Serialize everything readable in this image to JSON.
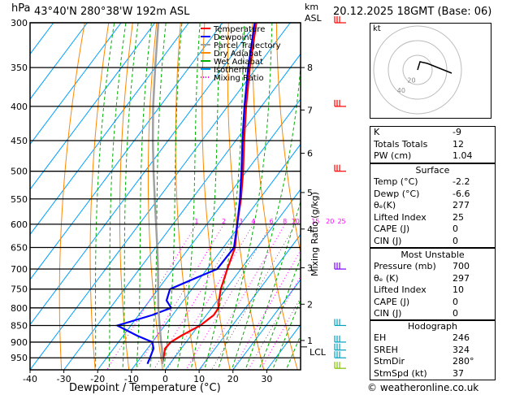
{
  "header": {
    "hpa_unit": "hPa",
    "location": "43°40'N  280°38'W  192m  ASL",
    "km_unit": "km",
    "asl_unit": "ASL",
    "datetime": "20.12.2025  18GMT  (Base: 06)",
    "xlabel": "Dewpoint / Temperature (°C)",
    "mixing_ratio_label": "Mixing Ratio (g/kg)",
    "lcl_label": "LCL",
    "hodo_unit": "kt"
  },
  "legend": [
    {
      "label": "Temperature",
      "color": "#ff0000"
    },
    {
      "label": "Dewpoint",
      "color": "#0000ff"
    },
    {
      "label": "Parcel Trajectory",
      "color": "#a0a0a0"
    },
    {
      "label": "Dry Adiabat",
      "color": "#ff8800"
    },
    {
      "label": "Wet Adiabat",
      "color": "#00b000"
    },
    {
      "label": "Isotherm",
      "color": "#00a0ff"
    },
    {
      "label": "Mixing Ratio",
      "color": "#ff00ff"
    }
  ],
  "chart_data": {
    "type": "line",
    "title": "43°40'N  280°38'W  192m  ASL",
    "xlabel": "Dewpoint / Temperature (°C)",
    "ylabel": "hPa",
    "xlim": [
      -40,
      40
    ],
    "ylim": [
      300,
      990
    ],
    "x_ticks": [
      -40,
      -30,
      -20,
      -10,
      0,
      10,
      20,
      30
    ],
    "pressure_ticks": [
      300,
      350,
      400,
      450,
      500,
      550,
      600,
      650,
      700,
      750,
      800,
      850,
      900,
      950
    ],
    "km_ticks": [
      {
        "km": "8",
        "p": 350
      },
      {
        "km": "7",
        "p": 405
      },
      {
        "km": "6",
        "p": 470
      },
      {
        "km": "5",
        "p": 538
      },
      {
        "km": "4",
        "p": 610
      },
      {
        "km": "3",
        "p": 697
      },
      {
        "km": "2",
        "p": 790
      },
      {
        "km": "1",
        "p": 895
      }
    ],
    "mixing_ratio_labels": [
      "1",
      "2",
      "3",
      "4",
      "6",
      "8",
      "10",
      "15",
      "20",
      "25"
    ],
    "series": [
      {
        "name": "Temperature",
        "color": "#ff0000",
        "points": [
          [
            970,
            -2.2
          ],
          [
            950,
            -3.2
          ],
          [
            920,
            -4.8
          ],
          [
            900,
            -4.5
          ],
          [
            880,
            -2.8
          ],
          [
            850,
            0.5
          ],
          [
            820,
            2.2
          ],
          [
            800,
            2.0
          ],
          [
            780,
            0.5
          ],
          [
            750,
            -1.5
          ],
          [
            700,
            -4.0
          ],
          [
            650,
            -6.5
          ],
          [
            600,
            -11.0
          ],
          [
            550,
            -15.5
          ],
          [
            500,
            -21.0
          ],
          [
            450,
            -27.5
          ],
          [
            400,
            -34.5
          ],
          [
            350,
            -42.0
          ],
          [
            300,
            -50.0
          ]
        ]
      },
      {
        "name": "Dewpoint",
        "color": "#0000ff",
        "points": [
          [
            970,
            -6.6
          ],
          [
            950,
            -7.2
          ],
          [
            920,
            -8.2
          ],
          [
            900,
            -10.0
          ],
          [
            880,
            -16.0
          ],
          [
            850,
            -24.0
          ],
          [
            820,
            -16.0
          ],
          [
            800,
            -12.0
          ],
          [
            780,
            -15.0
          ],
          [
            750,
            -16.5
          ],
          [
            720,
            -11.0
          ],
          [
            700,
            -7.0
          ],
          [
            650,
            -6.8
          ],
          [
            600,
            -11.0
          ],
          [
            550,
            -15.8
          ],
          [
            500,
            -21.5
          ],
          [
            450,
            -28.0
          ],
          [
            400,
            -35.0
          ],
          [
            350,
            -42.5
          ],
          [
            300,
            -50.5
          ]
        ]
      },
      {
        "name": "Parcel Trajectory",
        "color": "#a0a0a0",
        "points": [
          [
            970,
            -2.2
          ],
          [
            920,
            -5.7
          ],
          [
            900,
            -7.4
          ],
          [
            850,
            -11.5
          ],
          [
            800,
            -15.8
          ],
          [
            750,
            -20.0
          ],
          [
            700,
            -24.5
          ],
          [
            650,
            -29.5
          ],
          [
            600,
            -35.0
          ],
          [
            550,
            -41.0
          ],
          [
            500,
            -47.5
          ],
          [
            450,
            -54.5
          ],
          [
            400,
            -62.0
          ],
          [
            350,
            -70.0
          ],
          [
            300,
            -79.0
          ]
        ]
      }
    ],
    "lcl_pressure": 915
  },
  "indices": [
    {
      "label": "K",
      "value": "-9"
    },
    {
      "label": "Totals Totals",
      "value": "12"
    },
    {
      "label": "PW (cm)",
      "value": "1.04"
    }
  ],
  "surface": {
    "title": "Surface",
    "rows": [
      {
        "label": "Temp (°C)",
        "value": "-2.2"
      },
      {
        "label": "Dewp (°C)",
        "value": "-6.6"
      },
      {
        "label": "θₑ(K)",
        "value": "277"
      },
      {
        "label": "Lifted Index",
        "value": "25"
      },
      {
        "label": "CAPE (J)",
        "value": "0"
      },
      {
        "label": "CIN (J)",
        "value": "0"
      }
    ]
  },
  "most_unstable": {
    "title": "Most Unstable",
    "rows": [
      {
        "label": "Pressure (mb)",
        "value": "700"
      },
      {
        "label": "θₑ (K)",
        "value": "297"
      },
      {
        "label": "Lifted Index",
        "value": "10"
      },
      {
        "label": "CAPE (J)",
        "value": "0"
      },
      {
        "label": "CIN (J)",
        "value": "0"
      }
    ]
  },
  "hodograph": {
    "title": "Hodograph",
    "rows": [
      {
        "label": "EH",
        "value": "246"
      },
      {
        "label": "SREH",
        "value": "324"
      },
      {
        "label": "StmDir",
        "value": "280°"
      },
      {
        "label": "StmSpd (kt)",
        "value": "37"
      }
    ],
    "ring_labels": [
      "20",
      "40"
    ]
  },
  "footer": "© weatheronline.co.uk"
}
